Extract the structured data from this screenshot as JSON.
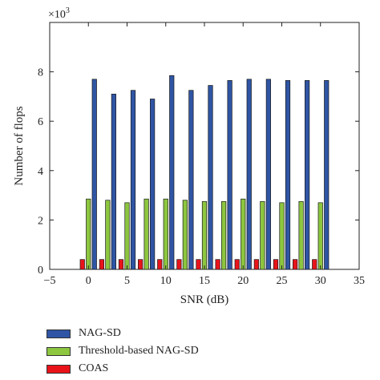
{
  "chart_data": {
    "type": "bar",
    "xlabel": "SNR (dB)",
    "ylabel": "Number of flops",
    "y_multiplier_label": "×10",
    "y_multiplier_exp": "3",
    "xlim": [
      -5,
      35
    ],
    "ylim": [
      0,
      10
    ],
    "xticks": [
      -5,
      0,
      5,
      10,
      15,
      20,
      25,
      30,
      35
    ],
    "yticks": [
      0,
      2,
      4,
      6,
      8
    ],
    "grid": false,
    "legend_position": "below",
    "x": [
      0,
      2.5,
      5,
      7.5,
      10,
      12.5,
      15,
      17.5,
      20,
      22.5,
      25,
      27.5,
      30
    ],
    "series": [
      {
        "name": "COAS",
        "color": "#e8141a",
        "values": [
          0.4,
          0.4,
          0.4,
          0.4,
          0.4,
          0.4,
          0.4,
          0.4,
          0.4,
          0.4,
          0.4,
          0.4,
          0.4
        ]
      },
      {
        "name": "Threshold-based NAG-SD",
        "color": "#8dc63f",
        "values": [
          2.85,
          2.8,
          2.7,
          2.85,
          2.85,
          2.8,
          2.75,
          2.75,
          2.85,
          2.75,
          2.7,
          2.75,
          2.7
        ]
      },
      {
        "name": "NAG-SD",
        "color": "#2f55a4",
        "values": [
          7.7,
          7.1,
          7.25,
          6.9,
          7.85,
          7.25,
          7.45,
          7.65,
          7.7,
          7.7,
          7.65,
          7.65,
          7.65
        ]
      }
    ]
  },
  "legend": {
    "items": [
      {
        "label": "NAG-SD",
        "color": "#2f55a4"
      },
      {
        "label": "Threshold-based NAG-SD",
        "color": "#8dc63f"
      },
      {
        "label": "COAS",
        "color": "#e8141a"
      }
    ]
  }
}
